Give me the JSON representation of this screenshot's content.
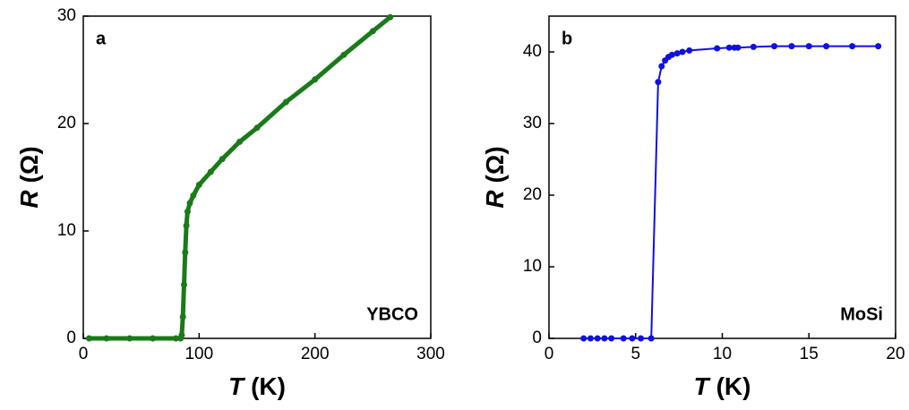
{
  "chart_data": [
    {
      "type": "line",
      "panel_label": "a",
      "annotation": "YBCO",
      "x_label_symbol": "T",
      "x_label_unit": "(K)",
      "y_label_symbol": "R",
      "y_label_unit": "(Ω)",
      "xlim": [
        0,
        300
      ],
      "xticks": [
        0,
        100,
        200,
        300
      ],
      "ylim": [
        0,
        30
      ],
      "yticks": [
        0,
        10,
        20,
        30
      ],
      "series": [
        {
          "color": "#1a7a1a",
          "markers": true,
          "x": [
            5,
            20,
            40,
            60,
            80,
            84,
            85,
            86,
            87,
            88,
            89,
            90,
            92,
            95,
            100,
            110,
            120,
            135,
            150,
            175,
            200,
            225,
            250,
            265
          ],
          "values": [
            0,
            0,
            0,
            0,
            0,
            0,
            0.3,
            2,
            5,
            8,
            10.5,
            11.8,
            12.6,
            13.3,
            14.3,
            15.5,
            16.7,
            18.3,
            19.6,
            22,
            24.1,
            26.4,
            28.6,
            29.9
          ]
        }
      ]
    },
    {
      "type": "line",
      "panel_label": "b",
      "annotation": "MoSi",
      "x_label_symbol": "T",
      "x_label_unit": "(K)",
      "y_label_symbol": "R",
      "y_label_unit": "(Ω)",
      "xlim": [
        0,
        20
      ],
      "xticks": [
        0,
        5,
        10,
        15,
        20
      ],
      "ylim": [
        0,
        45
      ],
      "yticks": [
        0,
        10,
        20,
        30,
        40
      ],
      "series": [
        {
          "color": "#1010e0",
          "markers": true,
          "x": [
            2,
            2.4,
            2.8,
            3.2,
            3.6,
            4.3,
            4.8,
            5.3,
            5.9,
            6.3,
            6.5,
            6.7,
            6.9,
            7.1,
            7.4,
            7.7,
            8.1,
            9.7,
            10.4,
            10.7,
            10.9,
            11.8,
            13,
            14,
            15,
            16,
            17.5,
            19
          ],
          "values": [
            0,
            0,
            0,
            0,
            0,
            0,
            0,
            0,
            0,
            35.8,
            38,
            38.8,
            39.3,
            39.6,
            39.8,
            40,
            40.2,
            40.5,
            40.6,
            40.6,
            40.6,
            40.7,
            40.8,
            40.8,
            40.8,
            40.8,
            40.8,
            40.8
          ]
        }
      ]
    }
  ]
}
